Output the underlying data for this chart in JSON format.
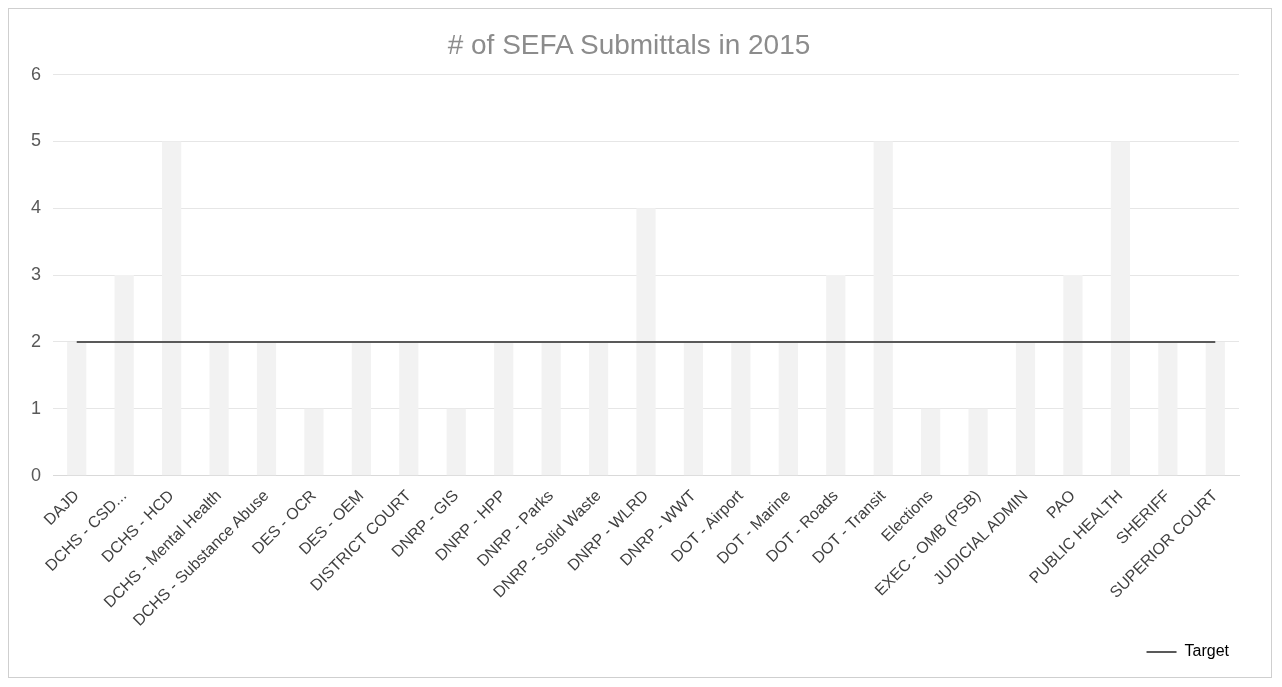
{
  "chart_data": {
    "type": "bar",
    "title": "# of SEFA Submittals in 2015",
    "categories": [
      "DAJD",
      "DCHS - CSD...",
      "DCHS - HCD",
      "DCHS - Mental Health",
      "DCHS - Substance Abuse",
      "DES - OCR",
      "DES - OEM",
      "DISTRICT COURT",
      "DNRP - GIS",
      "DNRP - HPP",
      "DNRP - Parks",
      "DNRP - Solid Waste",
      "DNRP - WLRD",
      "DNRP - WWT",
      "DOT - Airport",
      "DOT - Marine",
      "DOT - Roads",
      "DOT - Transit",
      "Elections",
      "EXEC - OMB (PSB)",
      "JUDICIAL ADMIN",
      "PAO",
      "PUBLIC HEALTH",
      "SHERIFF",
      "SUPERIOR COURT"
    ],
    "series": [
      {
        "color": "#f2f2f2",
        "values": [
          2,
          3,
          5,
          2,
          2,
          1,
          2,
          2,
          1,
          2,
          2,
          2,
          4,
          2,
          2,
          2,
          3,
          5,
          1,
          1,
          2,
          3,
          5,
          2,
          2
        ]
      },
      {
        "type": "line",
        "name": "Target",
        "color": "#595959",
        "values": [
          2,
          2,
          2,
          2,
          2,
          2,
          2,
          2,
          2,
          2,
          2,
          2,
          2,
          2,
          2,
          2,
          2,
          2,
          2,
          2,
          2,
          2,
          2,
          2,
          2
        ]
      }
    ],
    "ylim": [
      0,
      6
    ],
    "yticks": [
      0,
      1,
      2,
      3,
      4,
      5,
      6
    ],
    "grid": "y",
    "legend": "bottom right",
    "marker": "none"
  }
}
